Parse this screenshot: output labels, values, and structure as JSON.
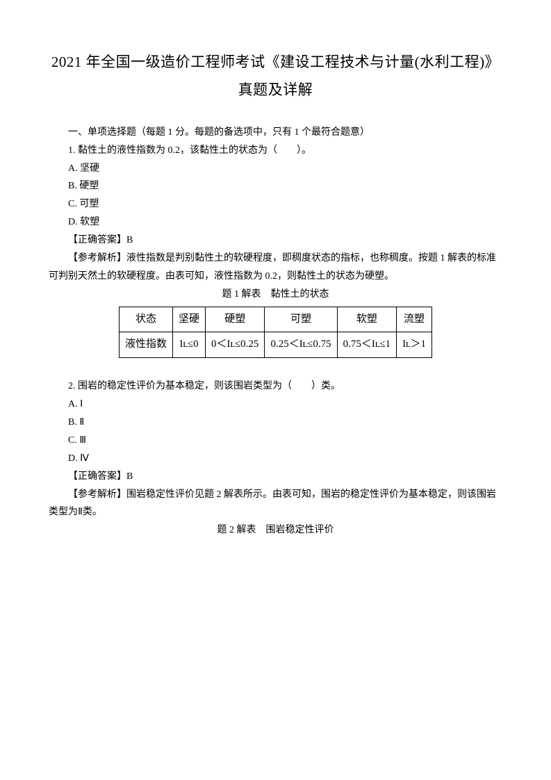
{
  "title_line1": "2021 年全国一级造价工程师考试《建设工程技术与计量(水利工程)》",
  "title_line2": "真题及详解",
  "section1_heading": "一、单项选择题（每题 1 分。每题的备选项中，只有 1 个最符合题意）",
  "q1": {
    "stem": "1. 黏性土的液性指数为 0.2，该黏性土的状态为（　　）。",
    "optA": "A. 坚硬",
    "optB": "B. 硬塑",
    "optC": "C. 可塑",
    "optD": "D. 软塑",
    "answer_label": "【正确答案】B",
    "analysis": "【参考解析】液性指数是判别黏性土的软硬程度，即稠度状态的指标，也称稠度。按题 1 解表的标准可判别天然土的软硬程度。由表可知，液性指数为 0.2，则黏性土的状态为硬塑。",
    "table_caption": "题 1 解表　黏性土的状态",
    "table": {
      "row1": [
        "状态",
        "坚硬",
        "硬塑",
        "可塑",
        "软塑",
        "流塑"
      ],
      "row2": [
        "液性指数",
        "Iʟ≤0",
        "0＜Iʟ≤0.25",
        "0.25＜Iʟ≤0.75",
        "0.75＜Iʟ≤1",
        "Iʟ＞1"
      ]
    }
  },
  "q2": {
    "stem": "2. 围岩的稳定性评价为基本稳定，则该围岩类型为（　　）类。",
    "optA": "A. Ⅰ",
    "optB": "B. Ⅱ",
    "optC": "C. Ⅲ",
    "optD": "D. Ⅳ",
    "answer_label": "【正确答案】B",
    "analysis": "【参考解析】围岩稳定性评价见题 2 解表所示。由表可知，围岩的稳定性评价为基本稳定，则该围岩类型为Ⅱ类。",
    "table_caption": "题 2 解表　围岩稳定性评价"
  }
}
